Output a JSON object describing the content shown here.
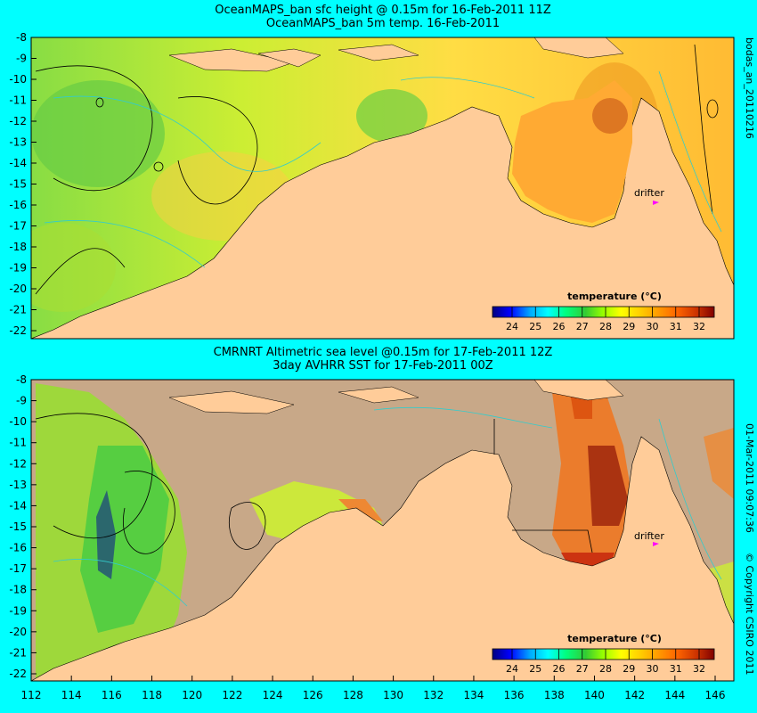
{
  "panels": [
    {
      "title1": "OceanMAPS_ban sfc height @ 0.15m for 16-Feb-2011 11Z",
      "title2": "OceanMAPS_ban 5m temp. 16-Feb-2011",
      "side_label": "bodas_an_20110216",
      "colorbar_title": "temperature (°C)",
      "colorbar_ticks": [
        "24",
        "25",
        "26",
        "27",
        "28",
        "29",
        "30",
        "31",
        "32"
      ],
      "drifter_label": "drifter"
    },
    {
      "title1": "CMRNRT Altimetric sea level  @0.15m  for 17-Feb-2011 12Z",
      "title2": "3day AVHRR SST for 17-Feb-2011 00Z",
      "side_label": "01-Mar-2011 09:07:36",
      "side_label2": "© Copyright CSIRO 2011",
      "colorbar_title": "temperature (°C)",
      "colorbar_ticks": [
        "24",
        "25",
        "26",
        "27",
        "28",
        "29",
        "30",
        "31",
        "32"
      ],
      "drifter_label": "drifter"
    }
  ],
  "y_ticks": [
    "-8",
    "-9",
    "-10",
    "-11",
    "-12",
    "-13",
    "-14",
    "-15",
    "-16",
    "-17",
    "-18",
    "-19",
    "-20",
    "-21",
    "-22"
  ],
  "x_ticks": [
    "112",
    "114",
    "116",
    "118",
    "120",
    "122",
    "124",
    "126",
    "128",
    "130",
    "132",
    "134",
    "136",
    "138",
    "140",
    "142",
    "144",
    "146"
  ],
  "colors": {
    "background": "#00ffff",
    "land": "#ffcc99",
    "land_masked": "#c8a888",
    "colorbar": [
      "#000080",
      "#0000ff",
      "#00aaff",
      "#00ffff",
      "#00ff80",
      "#33cc33",
      "#99ff00",
      "#ffff00",
      "#ffcc00",
      "#ff9900",
      "#ff6600",
      "#cc3300",
      "#800000"
    ]
  }
}
